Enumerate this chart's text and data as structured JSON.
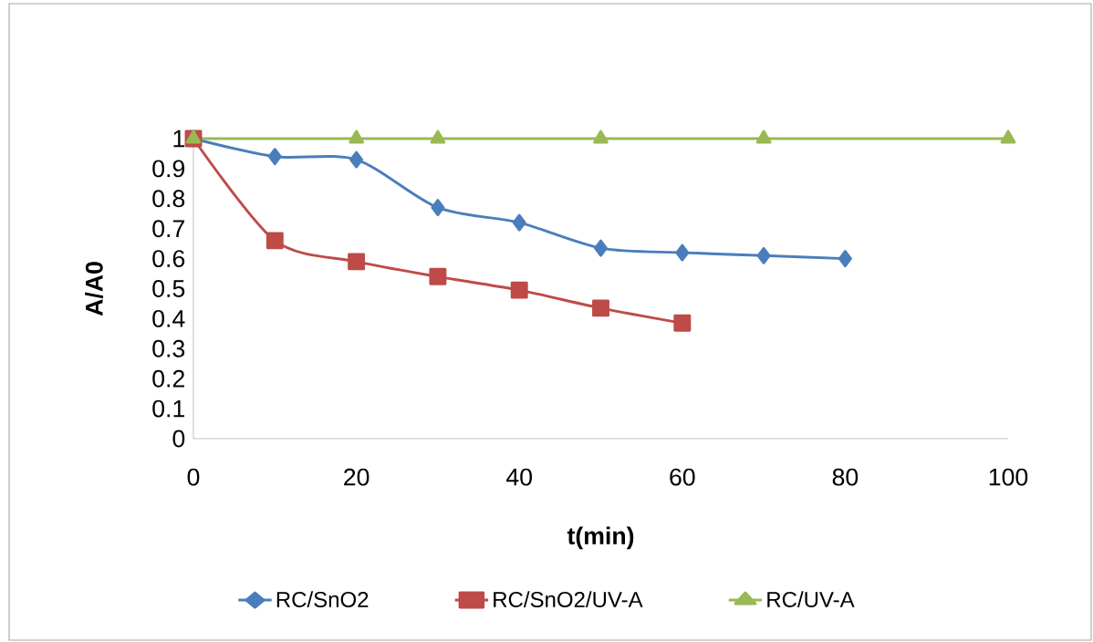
{
  "chart_data": {
    "type": "line",
    "xlabel": "t(min)",
    "ylabel": "A/A0",
    "xlim": [
      0,
      100
    ],
    "ylim": [
      0,
      1
    ],
    "xticks": [
      0,
      20,
      40,
      60,
      80,
      100
    ],
    "yticks": [
      0,
      0.1,
      0.2,
      0.3,
      0.4,
      0.5,
      0.6,
      0.7,
      0.8,
      0.9,
      1
    ],
    "legend": "bottom",
    "series": [
      {
        "name": "RC/SnO2",
        "color": "#4a7ebb",
        "marker": "diamond",
        "x": [
          0,
          10,
          20,
          30,
          40,
          50,
          60,
          70,
          80
        ],
        "values": [
          1,
          0.94,
          0.93,
          0.77,
          0.72,
          0.635,
          0.62,
          0.61,
          0.6
        ]
      },
      {
        "name": "RC/SnO2/UV-A",
        "color": "#be4b48",
        "marker": "square",
        "x": [
          0,
          10,
          20,
          30,
          40,
          50,
          60
        ],
        "values": [
          1,
          0.66,
          0.59,
          0.54,
          0.495,
          0.435,
          0.385
        ]
      },
      {
        "name": "RC/UV-A",
        "color": "#98b954",
        "marker": "triangle",
        "x": [
          0,
          20,
          30,
          50,
          70,
          100
        ],
        "values": [
          1,
          1,
          1,
          1,
          1,
          1
        ]
      }
    ]
  }
}
